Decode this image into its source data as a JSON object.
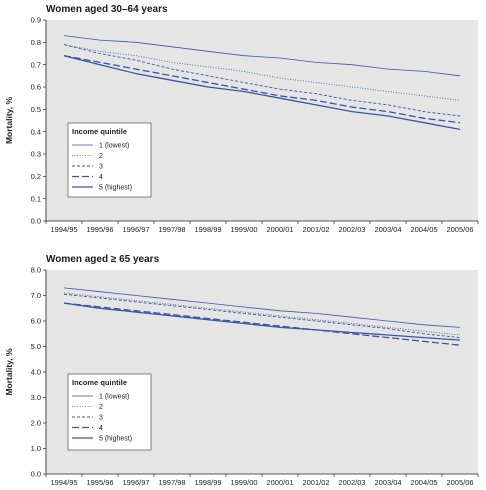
{
  "chart_data": [
    {
      "type": "line",
      "title": "Women aged 30–64 years",
      "ylabel": "Mortality, %",
      "xlabel": "",
      "ylim": [
        0,
        0.9
      ],
      "yticks": [
        "0.0",
        "0.1",
        "0.2",
        "0.3",
        "0.4",
        "0.5",
        "0.6",
        "0.7",
        "0.8",
        "0.9"
      ],
      "categories": [
        "1994/95",
        "1995/96",
        "1996/97",
        "1997/98",
        "1998/99",
        "1999/00",
        "2000/01",
        "2001/02",
        "2002/03",
        "2003/04",
        "2004/05",
        "2005/06"
      ],
      "grid": false,
      "legend": {
        "title": "Income quintile",
        "position": "bottom-left"
      },
      "series": [
        {
          "name": "1 (lowest)",
          "values": [
            0.83,
            0.81,
            0.8,
            0.78,
            0.76,
            0.74,
            0.73,
            0.71,
            0.7,
            0.68,
            0.67,
            0.65
          ]
        },
        {
          "name": "2",
          "values": [
            0.79,
            0.76,
            0.74,
            0.71,
            0.69,
            0.67,
            0.64,
            0.62,
            0.6,
            0.58,
            0.56,
            0.54
          ]
        },
        {
          "name": "3",
          "values": [
            0.79,
            0.75,
            0.72,
            0.68,
            0.65,
            0.62,
            0.59,
            0.57,
            0.54,
            0.52,
            0.49,
            0.47
          ]
        },
        {
          "name": "4",
          "values": [
            0.74,
            0.71,
            0.68,
            0.65,
            0.62,
            0.59,
            0.56,
            0.54,
            0.51,
            0.49,
            0.46,
            0.44
          ]
        },
        {
          "name": "5 (highest)",
          "values": [
            0.74,
            0.7,
            0.66,
            0.63,
            0.6,
            0.58,
            0.55,
            0.52,
            0.49,
            0.47,
            0.44,
            0.41
          ]
        }
      ]
    },
    {
      "type": "line",
      "title": "Women aged ≥ 65 years",
      "ylabel": "Mortality, %",
      "xlabel": "",
      "ylim": [
        0,
        8
      ],
      "yticks": [
        "0.0",
        "1.0",
        "2.0",
        "3.0",
        "4.0",
        "5.0",
        "6.0",
        "7.0",
        "8.0"
      ],
      "categories": [
        "1994/95",
        "1995/96",
        "1996/97",
        "1997/98",
        "1998/99",
        "1999/00",
        "2000/01",
        "2001/02",
        "2002/03",
        "2003/04",
        "2004/05",
        "2005/06"
      ],
      "grid": false,
      "legend": {
        "title": "Income quintile",
        "position": "bottom-left"
      },
      "series": [
        {
          "name": "1 (lowest)",
          "values": [
            7.3,
            7.15,
            7.0,
            6.85,
            6.7,
            6.55,
            6.4,
            6.3,
            6.15,
            6.0,
            5.85,
            5.75
          ]
        },
        {
          "name": "2",
          "values": [
            7.1,
            6.95,
            6.8,
            6.65,
            6.5,
            6.35,
            6.2,
            6.05,
            5.9,
            5.75,
            5.6,
            5.45
          ]
        },
        {
          "name": "3",
          "values": [
            7.05,
            6.9,
            6.75,
            6.6,
            6.45,
            6.3,
            6.15,
            6.0,
            5.85,
            5.7,
            5.5,
            5.35
          ]
        },
        {
          "name": "4",
          "values": [
            6.7,
            6.55,
            6.4,
            6.25,
            6.1,
            5.95,
            5.8,
            5.65,
            5.5,
            5.35,
            5.2,
            5.05
          ]
        },
        {
          "name": "5 (highest)",
          "values": [
            6.7,
            6.5,
            6.35,
            6.2,
            6.05,
            5.9,
            5.75,
            5.65,
            5.55,
            5.45,
            5.35,
            5.25
          ]
        }
      ]
    }
  ],
  "styles": {
    "plot_background": "#e5e5e5",
    "axis_color": "#222222",
    "series_color": "#3a55a3"
  }
}
